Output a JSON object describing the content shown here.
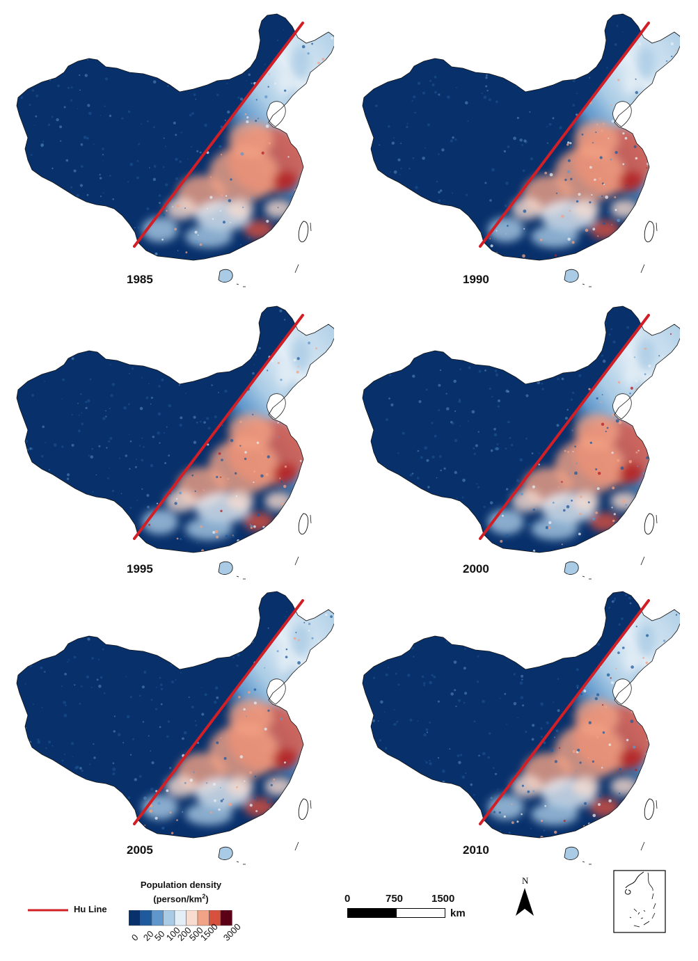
{
  "panels": [
    {
      "year": "1985"
    },
    {
      "year": "1990"
    },
    {
      "year": "1995"
    },
    {
      "year": "2000"
    },
    {
      "year": "2005"
    },
    {
      "year": "2010"
    }
  ],
  "colors": {
    "hu_line": "#d21f26",
    "ramp": [
      "#08306b",
      "#1f5a9c",
      "#5f97cc",
      "#a9cbe5",
      "#e3eef6",
      "#f8dcd0",
      "#f2a386",
      "#d8503e",
      "#b11d24",
      "#5b0016"
    ]
  },
  "legend": {
    "hu_line_label": "Hu Line",
    "density_title_line1": "Population density",
    "density_title_line2": "(person/km",
    "density_title_sup": "2",
    "density_title_end": ")",
    "ticks": [
      "0",
      "20",
      "50",
      "100",
      "200",
      "500",
      "1500",
      "3000"
    ]
  },
  "scale_bar": {
    "labels": [
      "0",
      "750",
      "1500"
    ],
    "unit": "km"
  },
  "north_arrow": {
    "label": "N"
  }
}
